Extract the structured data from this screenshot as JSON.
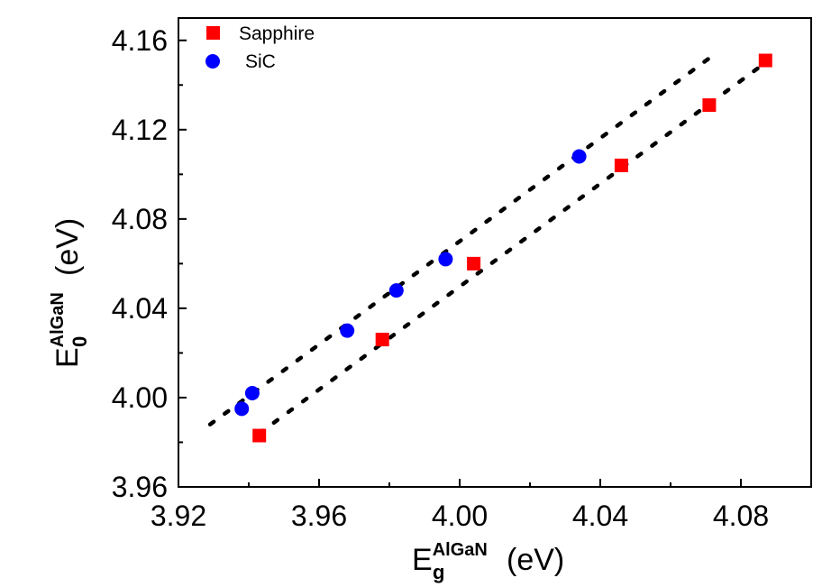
{
  "chart_data": {
    "type": "scatter",
    "title": "",
    "xlabel": {
      "main": "E",
      "sup": "AlGaN",
      "sub": "g",
      "unit": "(eV)"
    },
    "ylabel": {
      "main": "E",
      "sup": "AlGaN",
      "sub": "0",
      "unit": "(eV)"
    },
    "xlim": [
      3.92,
      4.1
    ],
    "ylim": [
      3.96,
      4.17
    ],
    "xticks": [
      "3.92",
      "3.96",
      "4.00",
      "4.04",
      "4.08"
    ],
    "yticks": [
      "3.96",
      "4.00",
      "4.04",
      "4.08",
      "4.12",
      "4.16"
    ],
    "grid": false,
    "legend_position": "top-left",
    "series": [
      {
        "name": "Sapphire",
        "marker": "square",
        "color": "#ff0000",
        "points": [
          {
            "x": 3.943,
            "y": 3.983
          },
          {
            "x": 3.978,
            "y": 4.026
          },
          {
            "x": 4.004,
            "y": 4.06
          },
          {
            "x": 4.046,
            "y": 4.104
          },
          {
            "x": 4.071,
            "y": 4.131
          },
          {
            "x": 4.087,
            "y": 4.151
          }
        ]
      },
      {
        "name": "SiC",
        "marker": "circle",
        "color": "#0000ff",
        "points": [
          {
            "x": 3.938,
            "y": 3.995
          },
          {
            "x": 3.941,
            "y": 4.002
          },
          {
            "x": 3.968,
            "y": 4.03
          },
          {
            "x": 3.982,
            "y": 4.048
          },
          {
            "x": 3.996,
            "y": 4.062
          },
          {
            "x": 4.034,
            "y": 4.108
          }
        ]
      }
    ],
    "fit_lines": [
      {
        "style": "dotted",
        "color": "#000000",
        "x": [
          3.943,
          4.087
        ],
        "y": [
          3.984,
          4.15
        ]
      },
      {
        "style": "dotted",
        "color": "#000000",
        "x": [
          3.929,
          4.071
        ],
        "y": [
          3.988,
          4.152
        ]
      }
    ]
  }
}
